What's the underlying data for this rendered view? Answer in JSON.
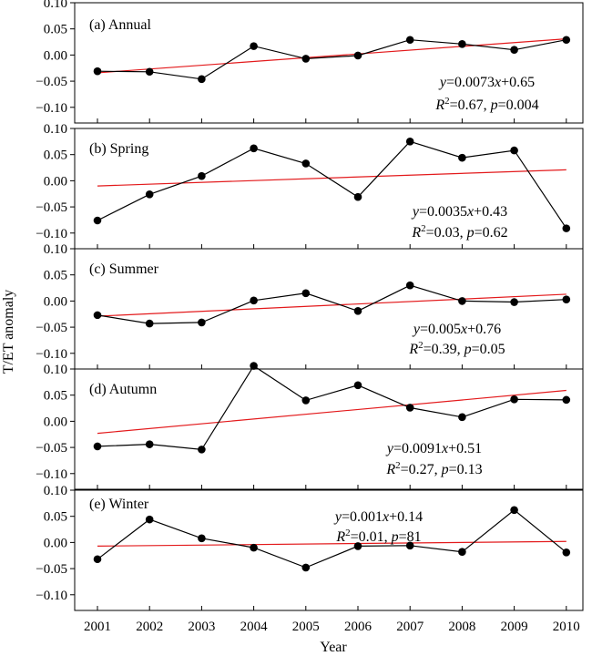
{
  "chart_data": {
    "type": "line",
    "xlabel": "Year",
    "ylabel": "T/ET anomaly",
    "x": [
      2001,
      2002,
      2003,
      2004,
      2005,
      2006,
      2007,
      2008,
      2009,
      2010
    ],
    "ylim": [
      -0.13,
      0.1
    ],
    "yticks": [
      0.1,
      0.05,
      0.0,
      -0.05,
      -0.1
    ],
    "ytick_labels": [
      "0.10",
      "0.05",
      "0.00",
      "−0.05",
      "−0.10"
    ],
    "xtick_labels": [
      "2001",
      "2002",
      "2003",
      "2004",
      "2005",
      "2006",
      "2007",
      "2008",
      "2009",
      "2010"
    ],
    "colors": {
      "data": "#000000",
      "trend": "#e31a1c"
    },
    "panels": [
      {
        "label": "(a) Annual",
        "values": [
          -0.031,
          -0.032,
          -0.046,
          0.017,
          -0.007,
          -0.001,
          0.029,
          0.021,
          0.01,
          0.029
        ],
        "trend": [
          -0.034,
          0.031
        ],
        "eq_line1": [
          "y",
          "=0.0073",
          "x",
          "+0.65"
        ],
        "eq_line2": [
          "R",
          "2",
          "=0.67, ",
          "p",
          "=0.004"
        ]
      },
      {
        "label": "(b) Spring",
        "values": [
          -0.076,
          -0.026,
          0.009,
          0.062,
          0.033,
          -0.031,
          0.075,
          0.044,
          0.058,
          -0.091
        ],
        "trend": [
          -0.01,
          0.021
        ],
        "eq_line1": [
          "y",
          "=0.0035",
          "x",
          "+0.43"
        ],
        "eq_line2": [
          "R",
          "2",
          "=0.03, ",
          "p",
          "=0.62"
        ]
      },
      {
        "label": "(c) Summer",
        "values": [
          -0.027,
          -0.043,
          -0.041,
          0.001,
          0.015,
          -0.019,
          0.03,
          0.0,
          -0.002,
          0.003
        ],
        "trend": [
          -0.029,
          0.013
        ],
        "eq_line1": [
          "y",
          "=0.005",
          "x",
          "+0.76"
        ],
        "eq_line2": [
          "R",
          "2",
          "=0.39, ",
          "p",
          "=0.05"
        ]
      },
      {
        "label": "(d) Autumn",
        "values": [
          -0.048,
          -0.044,
          -0.054,
          0.106,
          0.04,
          0.069,
          0.026,
          0.008,
          0.042,
          0.041
        ],
        "trend": [
          -0.023,
          0.059
        ],
        "eq_line1": [
          "y",
          "=0.0091",
          "x",
          "+0.51"
        ],
        "eq_line2": [
          "R",
          "2",
          "=0.27, ",
          "p",
          "=0.13"
        ]
      },
      {
        "label": "(e) Winter",
        "values": [
          -0.032,
          0.044,
          0.008,
          -0.01,
          -0.048,
          -0.007,
          -0.006,
          -0.018,
          0.062,
          -0.019
        ],
        "trend": [
          -0.007,
          0.002
        ],
        "eq_line1": [
          "y",
          "=0.001",
          "x",
          "+0.14"
        ],
        "eq_line2": [
          "R",
          "2",
          "=0.01, ",
          "p",
          "=81"
        ]
      }
    ]
  }
}
